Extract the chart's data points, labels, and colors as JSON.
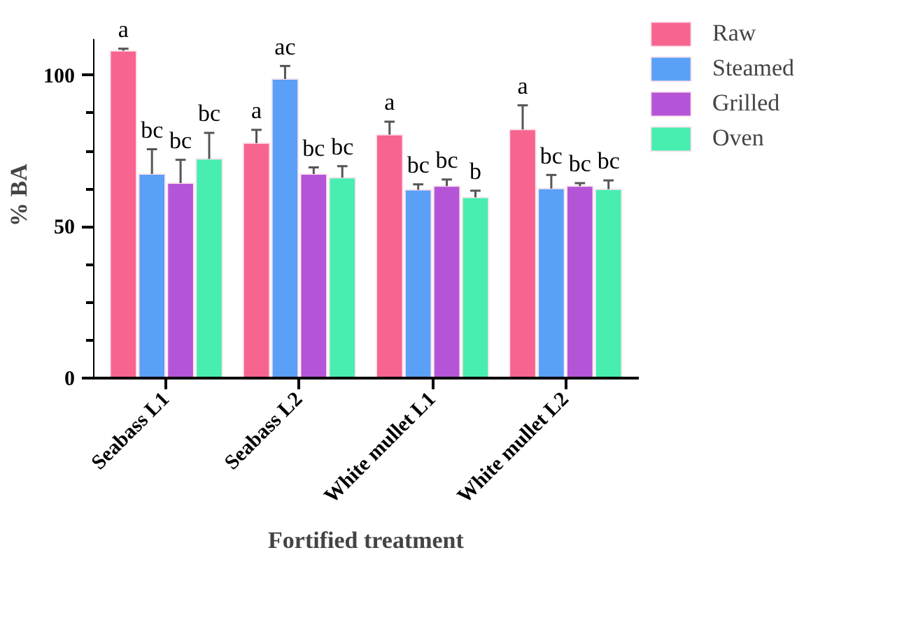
{
  "chart_data": {
    "type": "bar",
    "xlabel": "Fortified treatment",
    "ylabel": "% BA",
    "categories": [
      "Seabass L1",
      "Seabass L2",
      "White mullet L1",
      "White mullet L2"
    ],
    "series": [
      {
        "name": "Raw",
        "color": "#f7648f",
        "values": [
          108.1,
          77.6,
          80.4,
          82.1
        ],
        "errors": [
          0.7,
          4.4,
          4.3,
          8.0
        ],
        "value_labels": [
          "a",
          "a",
          "a",
          "a"
        ]
      },
      {
        "name": "Steamed",
        "color": "#5aa0f7",
        "values": [
          67.4,
          98.8,
          62.2,
          62.6
        ],
        "errors": [
          8.2,
          4.3,
          1.8,
          4.5
        ],
        "value_labels": [
          "bc",
          "ac",
          "bc",
          "bc"
        ]
      },
      {
        "name": "Grilled",
        "color": "#b455d8",
        "values": [
          64.4,
          67.4,
          63.4,
          63.4
        ],
        "errors": [
          7.7,
          2.2,
          2.2,
          1.0
        ],
        "value_labels": [
          "bc",
          "bc",
          "bc",
          "bc"
        ]
      },
      {
        "name": "Oven",
        "color": "#47eeb0",
        "values": [
          72.4,
          66.2,
          59.7,
          62.4
        ],
        "errors": [
          8.6,
          3.8,
          2.2,
          2.9
        ],
        "value_labels": [
          "bc",
          "bc",
          "b",
          "bc"
        ]
      }
    ],
    "ylim": [
      0,
      112
    ],
    "yticks": [
      0,
      {
        "value": 12.5,
        "label": null
      },
      {
        "value": 25,
        "label": null
      },
      {
        "value": 37.5,
        "label": null
      },
      50,
      {
        "value": 62.5,
        "label": null
      },
      {
        "value": 75,
        "label": null
      },
      {
        "value": 87.5,
        "label": null
      },
      100
    ],
    "grid": false,
    "legend": "top right"
  }
}
